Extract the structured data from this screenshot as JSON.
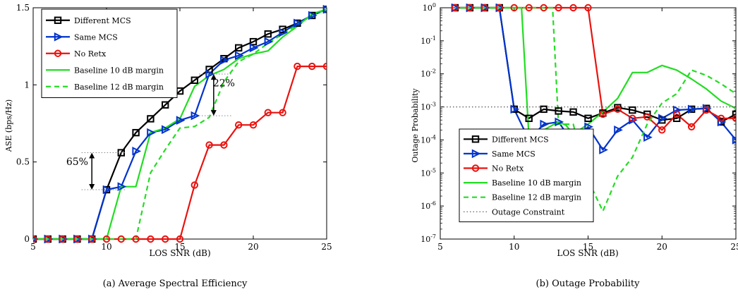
{
  "captions": {
    "a": "(a) Average Spectral Efficiency",
    "b": "(b) Outage Probability"
  },
  "chart_data": [
    {
      "type": "line",
      "xlabel": "LOS SNR (dB)",
      "ylabel": "ASE (bps/Hz)",
      "xlim": [
        5,
        25
      ],
      "ylim": [
        0,
        1.5
      ],
      "x_ticks": [
        5,
        10,
        15,
        20,
        25
      ],
      "y_ticks": [
        0,
        0.5,
        1,
        1.5
      ],
      "y_tick_labels": [
        "0",
        "0.5",
        "1",
        "1.5"
      ],
      "grid": false,
      "legend_position": "top-left",
      "series": [
        {
          "name": "Different MCS",
          "color": "#000000",
          "dash": "solid",
          "marker": "square",
          "x": [
            5,
            6,
            7,
            8,
            9,
            10,
            11,
            12,
            13,
            14,
            15,
            16,
            17,
            18,
            19,
            20,
            21,
            22,
            23,
            24,
            25
          ],
          "y": [
            0,
            0,
            0,
            0,
            0,
            0.32,
            0.56,
            0.69,
            0.78,
            0.87,
            0.96,
            1.03,
            1.1,
            1.17,
            1.24,
            1.28,
            1.33,
            1.36,
            1.4,
            1.45,
            1.49
          ]
        },
        {
          "name": "Same MCS",
          "color": "#0033cc",
          "dash": "solid",
          "marker": "triangle-right",
          "x": [
            5,
            6,
            7,
            8,
            9,
            10,
            11,
            12,
            13,
            14,
            15,
            16,
            17,
            18,
            19,
            20,
            21,
            22,
            23,
            24,
            25
          ],
          "y": [
            0,
            0,
            0,
            0,
            0,
            0.32,
            0.34,
            0.57,
            0.69,
            0.71,
            0.77,
            0.8,
            1.07,
            1.16,
            1.19,
            1.24,
            1.28,
            1.34,
            1.4,
            1.45,
            1.49
          ]
        },
        {
          "name": "No Retx",
          "color": "#e8130f",
          "dash": "solid",
          "marker": "circle",
          "x": [
            5,
            6,
            7,
            8,
            9,
            10,
            11,
            12,
            13,
            14,
            15,
            16,
            17,
            18,
            19,
            20,
            21,
            22,
            23,
            24,
            25
          ],
          "y": [
            0,
            0,
            0,
            0,
            0,
            0,
            0,
            0,
            0,
            0,
            0,
            0.35,
            0.61,
            0.61,
            0.74,
            0.74,
            0.82,
            0.82,
            1.12,
            1.12,
            1.12
          ]
        },
        {
          "name": "Baseline 10 dB margin",
          "color": "#22dd22",
          "dash": "solid",
          "marker": "none",
          "x": [
            5,
            6,
            7,
            8,
            9,
            10,
            11,
            12,
            13,
            14,
            15,
            16,
            17,
            18,
            19,
            20,
            21,
            22,
            23,
            24,
            25
          ],
          "y": [
            0,
            0,
            0,
            0,
            0,
            0,
            0.34,
            0.34,
            0.69,
            0.72,
            0.78,
            0.99,
            1.06,
            1.1,
            1.17,
            1.2,
            1.22,
            1.31,
            1.38,
            1.46,
            1.49
          ]
        },
        {
          "name": "Baseline 12 dB margin",
          "color": "#22dd22",
          "dash": "dashed",
          "marker": "none",
          "x": [
            5,
            6,
            7,
            8,
            9,
            10,
            11,
            12,
            13,
            14,
            15,
            16,
            17,
            18,
            19,
            20,
            21,
            22,
            23,
            24,
            25
          ],
          "y": [
            0,
            0,
            0,
            0,
            0,
            0,
            0,
            0,
            0.43,
            0.58,
            0.72,
            0.73,
            0.79,
            1.02,
            1.15,
            1.2,
            1.27,
            1.33,
            1.39,
            1.45,
            1.49
          ]
        }
      ],
      "annotations": [
        {
          "text": "65%",
          "x": 8.0,
          "y": 0.48,
          "arrow_x": 9.0,
          "arrow_from": 0.32,
          "arrow_to": 0.56
        },
        {
          "text": "22%",
          "x": 18.0,
          "y": 0.99,
          "arrow_x": 17.3,
          "arrow_from": 0.8,
          "arrow_to": 1.07
        }
      ]
    },
    {
      "type": "line",
      "xlabel": "LOS SNR (dB)",
      "ylabel": "Outage Probability",
      "xlim": [
        5,
        25
      ],
      "ylim": [
        1e-07,
        1
      ],
      "y_scale": "log",
      "x_ticks": [
        5,
        10,
        15,
        20,
        25
      ],
      "y_tick_exponents": [
        0,
        -1,
        -2,
        -3,
        -4,
        -5,
        -6,
        -7
      ],
      "grid": false,
      "legend_position": "bottom-left",
      "series": [
        {
          "name": "Different MCS",
          "color": "#000000",
          "dash": "solid",
          "marker": "square",
          "x": [
            6,
            7,
            8,
            9,
            10,
            11,
            12,
            13,
            14,
            15,
            16,
            17,
            18,
            19,
            20,
            21,
            22,
            23,
            24,
            25
          ],
          "y": [
            1,
            1,
            1,
            1,
            0.00085,
            0.00045,
            0.00085,
            0.00075,
            0.0007,
            0.00045,
            0.00065,
            0.00095,
            0.0008,
            0.0006,
            0.0004,
            0.00045,
            0.00085,
            0.0009,
            0.00035,
            0.0006
          ]
        },
        {
          "name": "Same MCS",
          "color": "#0033cc",
          "dash": "solid",
          "marker": "triangle-right",
          "x": [
            6,
            7,
            8,
            9,
            10,
            11,
            12,
            13,
            14,
            15,
            16,
            17,
            18,
            19,
            20,
            21,
            22,
            23,
            24,
            25
          ],
          "y": [
            1,
            1,
            1,
            1,
            0.00085,
            0.0001,
            0.0003,
            0.00035,
            8e-05,
            0.00025,
            5e-05,
            0.0002,
            0.0004,
            0.00012,
            0.00045,
            0.0008,
            0.00085,
            0.0009,
            0.00035,
            0.0001
          ]
        },
        {
          "name": "No Retx",
          "color": "#e8130f",
          "dash": "solid",
          "marker": "circle",
          "x": [
            6,
            7,
            8,
            9,
            10,
            11,
            12,
            13,
            14,
            15,
            16,
            17,
            18,
            19,
            20,
            21,
            22,
            23,
            24,
            25
          ],
          "y": [
            1,
            1,
            1,
            1,
            1,
            1,
            1,
            1,
            1,
            1,
            0.0006,
            0.00085,
            0.00045,
            0.0005,
            0.0002,
            0.0006,
            0.00025,
            0.0008,
            0.00045,
            0.00045
          ]
        },
        {
          "name": "Baseline 10 dB margin",
          "color": "#22dd22",
          "dash": "solid",
          "marker": "none",
          "x": [
            6,
            7,
            8,
            9,
            10,
            10.5,
            11,
            11.6,
            12,
            13,
            13.5,
            14,
            15,
            16,
            17,
            18,
            19,
            20,
            21,
            22,
            23,
            24,
            25
          ],
          "y": [
            1,
            1,
            1,
            1,
            1,
            1,
            0.00012,
            8e-05,
            0.0002,
            0.00035,
            0.00028,
            0.00015,
            0.0003,
            0.0007,
            0.0018,
            0.011,
            0.011,
            0.018,
            0.013,
            0.007,
            0.0035,
            0.0015,
            0.0009
          ]
        },
        {
          "name": "Baseline 12 dB margin",
          "color": "#22dd22",
          "dash": "dashed",
          "marker": "none",
          "x": [
            6,
            7,
            8,
            9,
            10,
            11,
            12,
            12.6,
            13,
            14,
            15,
            16,
            17,
            18,
            19,
            20,
            21,
            22,
            23,
            24,
            25
          ],
          "y": [
            1,
            1,
            1,
            1,
            1,
            1,
            1,
            1,
            0.0003,
            0.0003,
            6e-06,
            7e-07,
            8e-06,
            3e-05,
            0.0003,
            0.0013,
            0.0025,
            0.013,
            0.009,
            0.005,
            0.0025
          ]
        },
        {
          "name": "Outage Constraint",
          "color": "#555555",
          "dash": "dotted",
          "marker": "none",
          "x": [
            5,
            25
          ],
          "y": [
            0.001,
            0.001
          ]
        }
      ]
    }
  ]
}
